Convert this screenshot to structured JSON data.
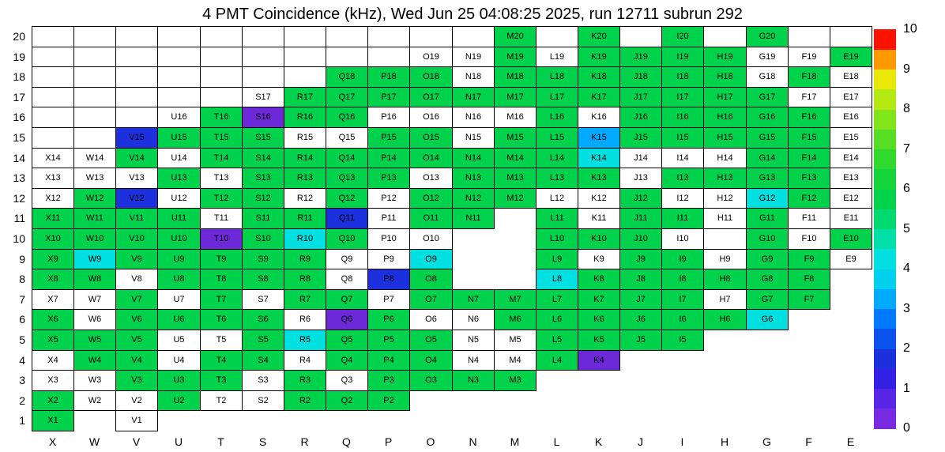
{
  "title": "4 PMT Coincidence (kHz), Wed Jun 25 04:08:25 2025, run 12711 subrun 292",
  "chart_data": {
    "type": "heatmap",
    "title": "4 PMT Coincidence (kHz), Wed Jun 25 04:08:25 2025, run 12711 subrun 292",
    "xlabel": "",
    "ylabel": "",
    "x_categories": [
      "X",
      "W",
      "V",
      "U",
      "T",
      "S",
      "R",
      "Q",
      "P",
      "O",
      "N",
      "M",
      "L",
      "K",
      "J",
      "I",
      "H",
      "G",
      "F",
      "E"
    ],
    "y_categories": [
      "20",
      "19",
      "18",
      "17",
      "16",
      "15",
      "14",
      "13",
      "12",
      "11",
      "10",
      "9",
      "8",
      "7",
      "6",
      "5",
      "4",
      "3",
      "2",
      "1"
    ],
    "cell_label_format": "{column}{row}",
    "code_legend": {
      ".": "no channel drawn (blank area)",
      "u": "channel box drawn, unlabeled (white)",
      "w": "labeled channel, rate ~0 kHz (white)",
      "g": "labeled channel, rate ~5 kHz (green)",
      "c": "labeled channel, rate ~3.8 kHz (cyan)",
      "s": "labeled channel, rate ~3 kHz (light blue)",
      "b": "labeled channel, rate ~1.7 kHz (blue)",
      "p": "labeled channel, rate ~0.7 kHz (violet)"
    },
    "cell_styles": {
      "u": {
        "color": "#ffffff",
        "value": null
      },
      "w": {
        "color": "#ffffff",
        "value": 0
      },
      "g": {
        "color": "#00d24b",
        "value": 5
      },
      "c": {
        "color": "#00e0e0",
        "value": 3.8
      },
      "s": {
        "color": "#00aaff",
        "value": 3
      },
      "b": {
        "color": "#1c30dd",
        "value": 1.7
      },
      "p": {
        "color": "#6d28d8",
        "value": 0.7
      }
    },
    "grid_rows_top_to_bottom": [
      {
        "row": "20",
        "cells": "uuuuuuuuuuuguguguguu"
      },
      {
        "row": "19",
        "cells": "uuuuuuuuuwwgwggggwwg"
      },
      {
        "row": "18",
        "cells": "uuuuuuugggwggggggwgw"
      },
      {
        "row": "17",
        "cells": "uuuuuwggggggggggggww"
      },
      {
        "row": "16",
        "cells": "uuuwgpggwwwwgwgggggw"
      },
      {
        "row": "15",
        "cells": "uubgggwwggwggsgggggw"
      },
      {
        "row": "14",
        "cells": "wwgwgggggggggcwwwggw"
      },
      {
        "row": "13",
        "cells": "wwwgwggggwggggwggggw"
      },
      {
        "row": "12",
        "cells": "wgbwggwgwgggwwgwwcgw"
      },
      {
        "row": "11",
        "cells": "ggggwggbwgg.gwggwgww"
      },
      {
        "row": "10",
        "cells": "ggggpgcgww..gggw.gwg"
      },
      {
        "row": "9",
        "cells": "gcgggggwwc..gwggwggw"
      },
      {
        "row": "8",
        "cells": "ggwggggwbg..cgggggg."
      },
      {
        "row": "7",
        "cells": "wwgwgwggwgggggggwgg."
      },
      {
        "row": "6",
        "cells": "gwggggwpgwwggggggc.."
      },
      {
        "row": "5",
        "cells": "gggwwgcgggwwgggg...."
      },
      {
        "row": "4",
        "cells": "wggwggwgggwwgp......"
      },
      {
        "row": "3",
        "cells": "wwgggwgwgggg........"
      },
      {
        "row": "2",
        "cells": "gwwgwwggg..........."
      },
      {
        "row": "1",
        "cells": "g.w................."
      }
    ],
    "colorbar": {
      "min": 0,
      "max": 10,
      "tick_labels_top_to_bottom": [
        "10",
        "9",
        "8",
        "7",
        "6",
        "5",
        "4",
        "3",
        "2",
        "1",
        "0"
      ],
      "band_colors_bottom_to_top": [
        "#7a2be2",
        "#5726e6",
        "#3420e4",
        "#1c30dd",
        "#0b52ee",
        "#007bff",
        "#00aaff",
        "#00cfee",
        "#00e0e0",
        "#00dfa8",
        "#00d96f",
        "#00d24b",
        "#14d43c",
        "#30d92e",
        "#55de24",
        "#82e41b",
        "#b4ea12",
        "#eae80a",
        "#ff9900",
        "#fa1400"
      ]
    }
  }
}
